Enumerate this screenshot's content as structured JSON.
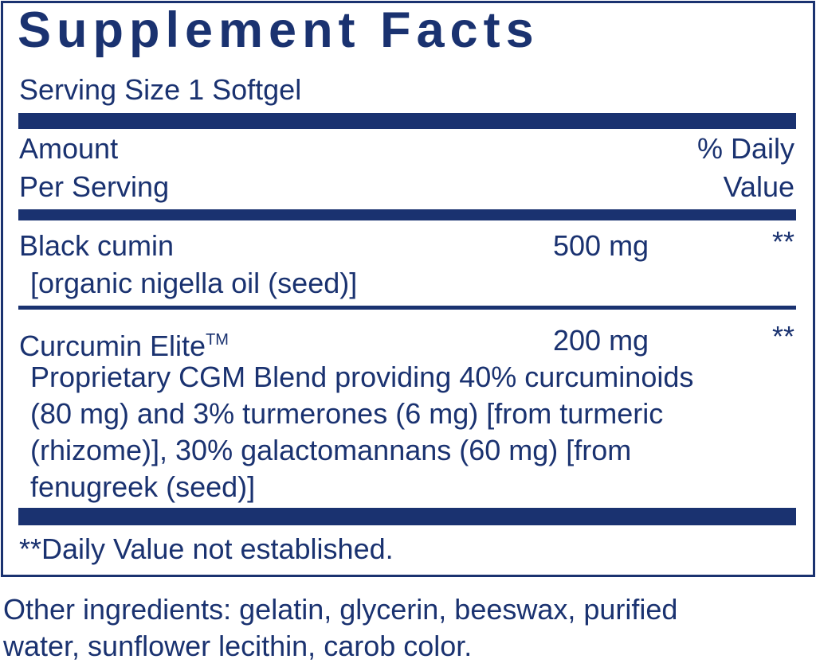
{
  "title": "Supplement Facts",
  "serving_size": "Serving Size 1 Softgel",
  "header": {
    "amount_line1": "Amount",
    "amount_line2": "Per Serving",
    "dv_line1": "% Daily",
    "dv_line2": "Value"
  },
  "ingredients": [
    {
      "name": "Black cumin",
      "amount": "500 mg",
      "dv": "**",
      "detail": [
        "[organic nigella oil (seed)]"
      ]
    },
    {
      "name": "Curcumin Elite",
      "trademark": "TM",
      "amount": "200 mg",
      "dv": "**",
      "detail": [
        "Proprietary CGM Blend providing 40% curcuminoids",
        "(80 mg) and 3% turmerones (6 mg) [from turmeric",
        "(rhizome)], 30% galactomannans (60 mg) [from",
        "fenugreek (seed)]"
      ]
    }
  ],
  "footnote": "**Daily Value not established.",
  "other_ingredients": [
    "Other ingredients: gelatin, glycerin, beeswax, purified",
    "water, sunflower lecithin, carob color."
  ],
  "colors": {
    "primary": "#1a3270",
    "background": "#ffffff"
  }
}
